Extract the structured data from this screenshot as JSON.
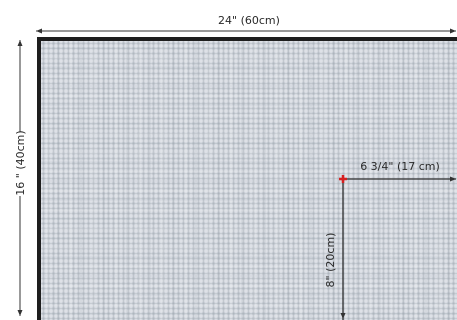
{
  "dimensions": {
    "width_label": "24\" (60cm)",
    "height_label": "16 \" (40cm)",
    "horizontal_offset_label": "6 3/4\" (17 cm)",
    "vertical_offset_label": "8\" (20cm)"
  },
  "colors": {
    "fabric_base": "#c9ced6",
    "fabric_thread_light": "#e4e7ec",
    "fabric_thread_dark": "#9ea5ae",
    "frame": "#1e1e1e",
    "marker": "#d62020",
    "dimension_line": "#333333"
  }
}
